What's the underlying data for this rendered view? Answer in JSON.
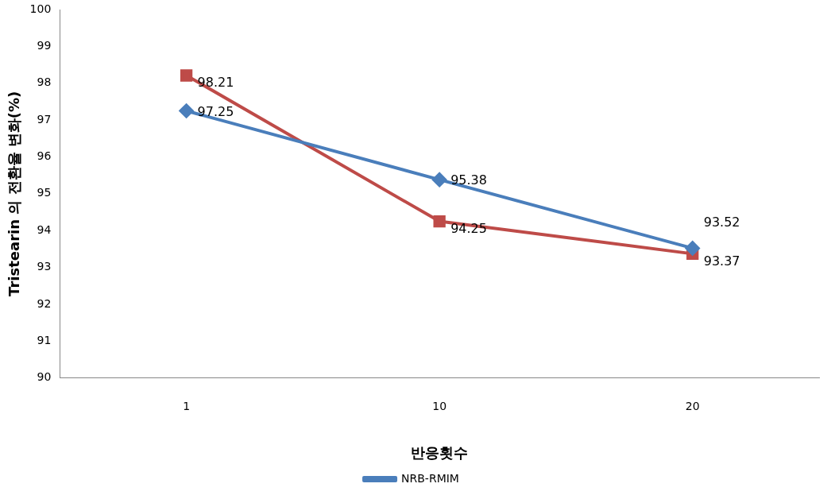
{
  "chart_data": {
    "type": "line",
    "xlabel": "반응횟수",
    "ylabel": "Tristearin 의 전환율 변화(%)",
    "categories": [
      "1",
      "10",
      "20"
    ],
    "series": [
      {
        "name": "NRB-RMIM",
        "color": "#4a7ebb",
        "marker": "diamond",
        "values": [
          97.25,
          95.38,
          93.52
        ]
      },
      {
        "color": "#be4b48",
        "marker": "square",
        "values": [
          98.21,
          94.25,
          93.37
        ]
      }
    ],
    "ylim": [
      90,
      100
    ],
    "yticks": [
      90,
      91,
      92,
      93,
      94,
      95,
      96,
      97,
      98,
      99,
      100
    ],
    "grid": false,
    "legend": "bottom",
    "data_labels": true,
    "line_style": "solid"
  }
}
